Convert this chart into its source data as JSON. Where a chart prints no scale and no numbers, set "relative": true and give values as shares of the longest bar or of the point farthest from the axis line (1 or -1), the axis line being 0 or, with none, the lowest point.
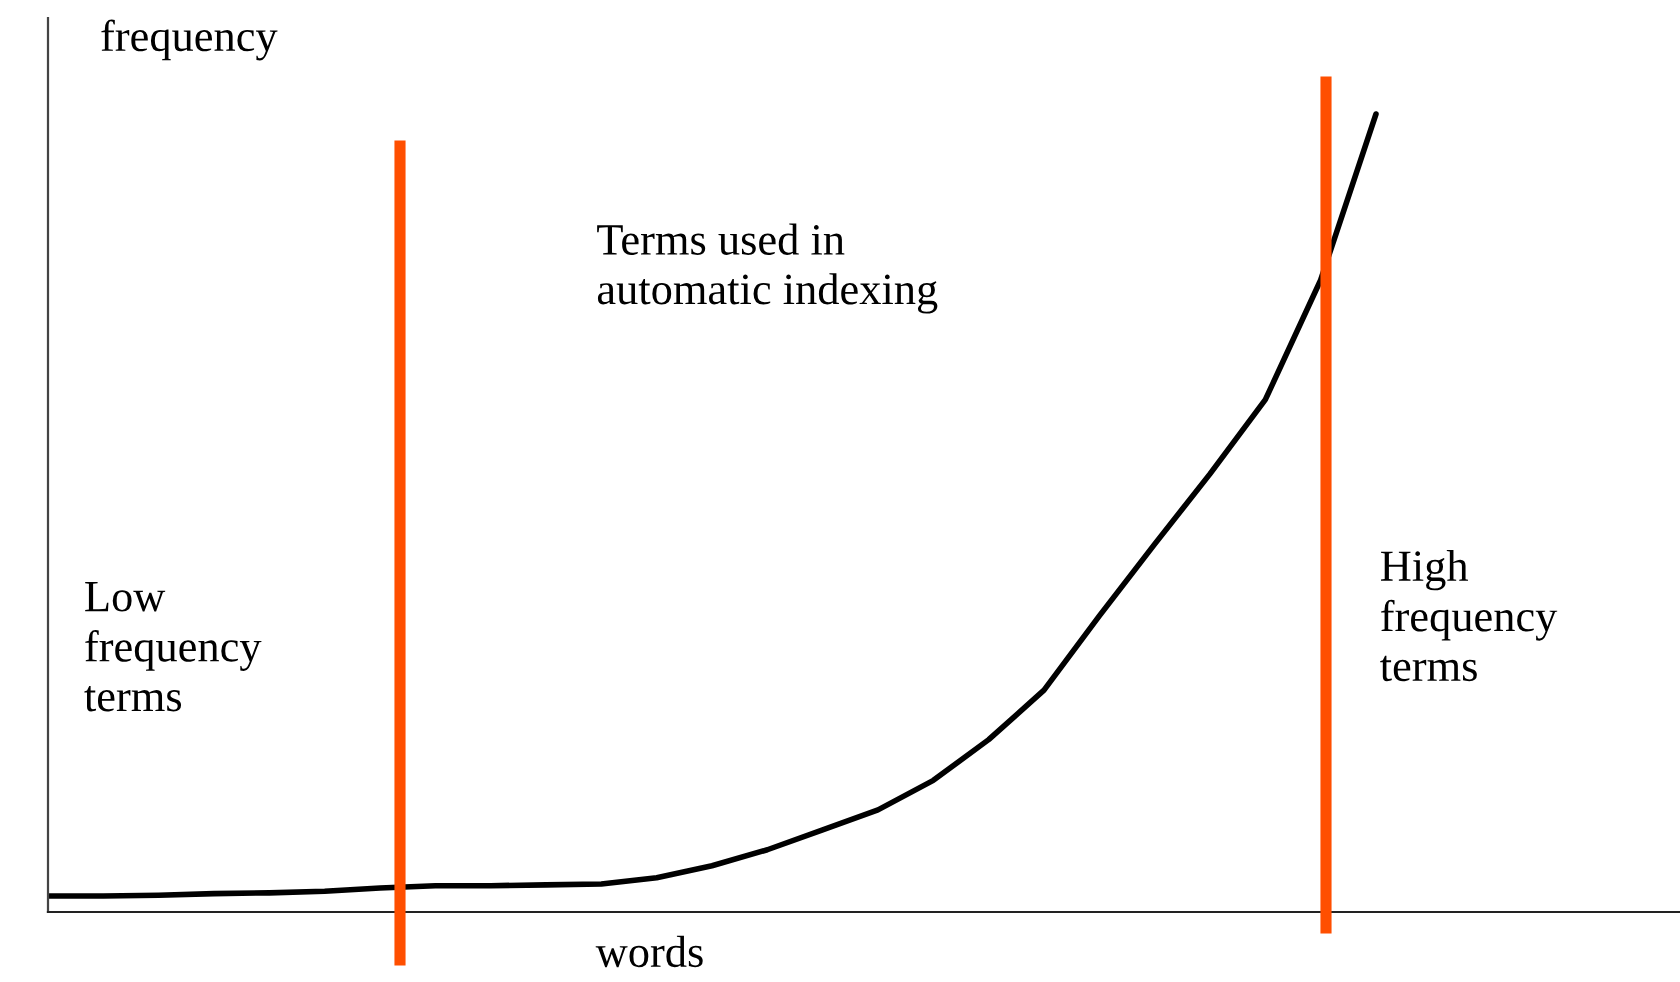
{
  "chart_data": {
    "type": "line",
    "relative": true,
    "xlabel": "words",
    "ylabel": "frequency",
    "categories": [
      null,
      null,
      null,
      null,
      null,
      null,
      null,
      null,
      null,
      null,
      null,
      null,
      null,
      null,
      null,
      null,
      null,
      null,
      null,
      null,
      null,
      null,
      null,
      null,
      null
    ],
    "series": [
      {
        "color": "#000000",
        "values": [
          0.02,
          0.02,
          0.021,
          0.023,
          0.024,
          0.026,
          0.03,
          0.033,
          0.033,
          0.034,
          0.035,
          0.043,
          0.058,
          0.078,
          0.103,
          0.128,
          0.165,
          0.216,
          0.278,
          0.371,
          0.461,
          0.549,
          0.642,
          0.792,
          1.0
        ]
      }
    ],
    "annotations": [
      "Low\nfrequency\nterms",
      "Terms used in\nautomatic indexing",
      "High\nfrequency\nterms"
    ],
    "legend": false,
    "marker": "none",
    "line_style": "solid"
  }
}
